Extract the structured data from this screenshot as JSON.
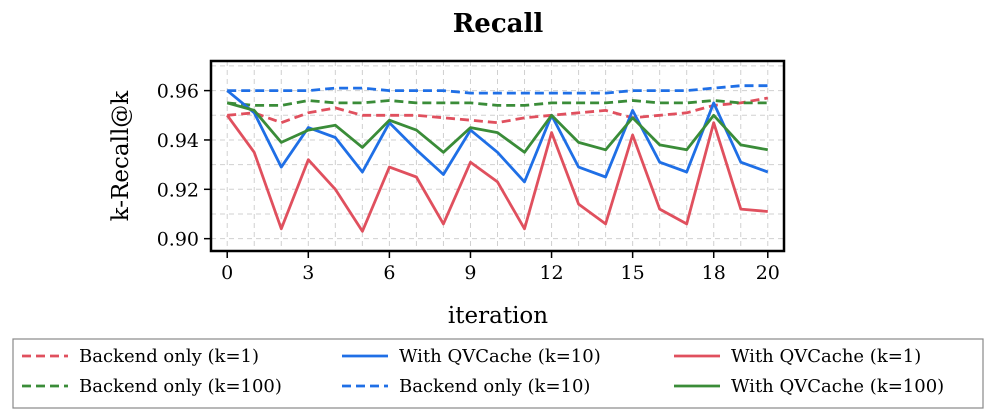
{
  "chart_data": {
    "type": "line",
    "title": "Recall",
    "xlabel": "iteration",
    "ylabel": "k-Recall@k",
    "xlim": [
      -0.6,
      20.6
    ],
    "ylim": [
      0.895,
      0.972
    ],
    "xticks": [
      0,
      3,
      6,
      9,
      12,
      15,
      18,
      20
    ],
    "yticks": [
      0.9,
      0.92,
      0.94,
      0.96
    ],
    "ytick_labels": [
      "0.90",
      "0.92",
      "0.94",
      "0.96"
    ],
    "grid": true,
    "legend_position": "bottom",
    "x": [
      0,
      1,
      2,
      3,
      4,
      5,
      6,
      7,
      8,
      9,
      10,
      11,
      12,
      13,
      14,
      15,
      16,
      17,
      18,
      19,
      20
    ],
    "series": [
      {
        "name": "Backend only (k=1)",
        "color": "#e0505e",
        "dashed": true,
        "values": [
          0.95,
          0.951,
          0.947,
          0.951,
          0.953,
          0.95,
          0.95,
          0.95,
          0.949,
          0.948,
          0.947,
          0.949,
          0.95,
          0.951,
          0.952,
          0.949,
          0.95,
          0.951,
          0.954,
          0.955,
          0.957
        ]
      },
      {
        "name": "Backend only (k=10)",
        "color": "#1f6fe6",
        "dashed": true,
        "values": [
          0.96,
          0.96,
          0.96,
          0.96,
          0.961,
          0.961,
          0.96,
          0.96,
          0.96,
          0.959,
          0.959,
          0.959,
          0.959,
          0.959,
          0.959,
          0.96,
          0.96,
          0.96,
          0.961,
          0.962,
          0.962
        ]
      },
      {
        "name": "Backend only (k=100)",
        "color": "#3a8c38",
        "dashed": true,
        "values": [
          0.955,
          0.954,
          0.954,
          0.956,
          0.955,
          0.955,
          0.956,
          0.955,
          0.955,
          0.955,
          0.954,
          0.954,
          0.955,
          0.955,
          0.955,
          0.956,
          0.955,
          0.955,
          0.956,
          0.955,
          0.955
        ]
      },
      {
        "name": "With QVCache (k=1)",
        "color": "#e0505e",
        "dashed": false,
        "values": [
          0.95,
          0.935,
          0.904,
          0.932,
          0.92,
          0.903,
          0.929,
          0.925,
          0.906,
          0.931,
          0.923,
          0.904,
          0.943,
          0.914,
          0.906,
          0.942,
          0.912,
          0.906,
          0.947,
          0.912,
          0.911
        ]
      },
      {
        "name": "With QVCache (k=10)",
        "color": "#1f6fe6",
        "dashed": false,
        "values": [
          0.96,
          0.951,
          0.929,
          0.945,
          0.941,
          0.927,
          0.947,
          0.936,
          0.926,
          0.944,
          0.935,
          0.923,
          0.95,
          0.929,
          0.925,
          0.952,
          0.931,
          0.927,
          0.955,
          0.931,
          0.927
        ]
      },
      {
        "name": "With QVCache (k=100)",
        "color": "#3a8c38",
        "dashed": false,
        "values": [
          0.955,
          0.952,
          0.939,
          0.944,
          0.946,
          0.937,
          0.948,
          0.944,
          0.935,
          0.945,
          0.943,
          0.935,
          0.95,
          0.939,
          0.936,
          0.949,
          0.938,
          0.936,
          0.95,
          0.938,
          0.936
        ]
      }
    ],
    "legend_order": [
      0,
      2,
      4,
      1,
      3,
      5
    ]
  }
}
